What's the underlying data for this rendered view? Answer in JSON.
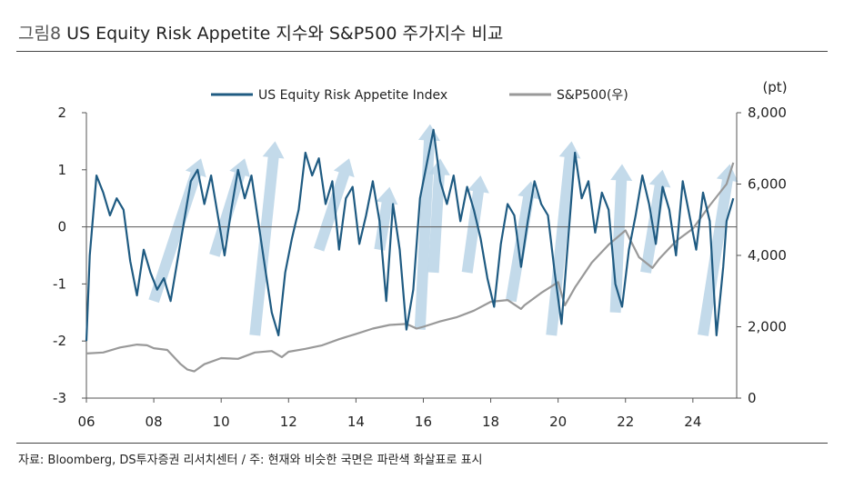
{
  "header": {
    "figure_label": "그림8",
    "title": "US Equity Risk Appetite 지수와 S&P500 주가지수 비교"
  },
  "footer": {
    "source": "자료: Bloomberg, DS투자증권 리서치센터 / 주: 현재와 비슷한 국면은 파란색 화살표로 표시"
  },
  "colors": {
    "risk_index": "#1f5b82",
    "sp500": "#999999",
    "arrow": "#b8d3e6",
    "axis": "#555555"
  },
  "chart_data": {
    "type": "line",
    "title": "US Equity Risk Appetite 지수와 S&P500 주가지수 비교",
    "x_tick_labels": [
      "06",
      "08",
      "10",
      "12",
      "14",
      "16",
      "18",
      "20",
      "22",
      "24"
    ],
    "x_range": [
      2006.0,
      2025.3
    ],
    "y_left": {
      "range": [
        -3,
        2
      ],
      "ticks": [
        2,
        1,
        0,
        -1,
        -2,
        -3
      ],
      "tick_labels": [
        "2",
        "1",
        "0",
        "-1",
        "-2",
        "-3"
      ]
    },
    "y_right": {
      "range": [
        0,
        8000
      ],
      "unit_label": "(pt)",
      "ticks": [
        8000,
        6000,
        4000,
        2000,
        0
      ],
      "tick_labels": [
        "8,000",
        "6,000",
        "4,000",
        "2,000",
        "0"
      ]
    },
    "zero_line": true,
    "legend": [
      "US Equity Risk Appetite Index",
      "S&P500(우)"
    ],
    "legend_position": "top-center",
    "series": [
      {
        "name": "US Equity Risk Appetite Index",
        "axis": "left",
        "x": [
          2006.0,
          2006.1,
          2006.3,
          2006.5,
          2006.7,
          2006.9,
          2007.1,
          2007.3,
          2007.5,
          2007.7,
          2007.9,
          2008.1,
          2008.3,
          2008.5,
          2008.7,
          2008.9,
          2009.1,
          2009.3,
          2009.5,
          2009.7,
          2009.9,
          2010.1,
          2010.3,
          2010.5,
          2010.7,
          2010.9,
          2011.1,
          2011.3,
          2011.5,
          2011.7,
          2011.9,
          2012.1,
          2012.3,
          2012.5,
          2012.7,
          2012.9,
          2013.1,
          2013.3,
          2013.5,
          2013.7,
          2013.9,
          2014.1,
          2014.3,
          2014.5,
          2014.7,
          2014.9,
          2015.1,
          2015.3,
          2015.5,
          2015.7,
          2015.9,
          2016.1,
          2016.3,
          2016.5,
          2016.7,
          2016.9,
          2017.1,
          2017.3,
          2017.5,
          2017.7,
          2017.9,
          2018.1,
          2018.3,
          2018.5,
          2018.7,
          2018.9,
          2019.1,
          2019.3,
          2019.5,
          2019.7,
          2019.9,
          2020.1,
          2020.3,
          2020.5,
          2020.7,
          2020.9,
          2021.1,
          2021.3,
          2021.5,
          2021.7,
          2021.9,
          2022.1,
          2022.3,
          2022.5,
          2022.7,
          2022.9,
          2023.1,
          2023.3,
          2023.5,
          2023.7,
          2023.9,
          2024.1,
          2024.3,
          2024.5,
          2024.7,
          2024.9,
          2025.0,
          2025.2
        ],
        "values": [
          -2.0,
          -0.5,
          0.9,
          0.6,
          0.2,
          0.5,
          0.3,
          -0.6,
          -1.2,
          -0.4,
          -0.8,
          -1.1,
          -0.9,
          -1.3,
          -0.6,
          0.1,
          0.8,
          1.0,
          0.4,
          0.9,
          0.2,
          -0.5,
          0.3,
          1.0,
          0.5,
          0.9,
          0.1,
          -0.7,
          -1.5,
          -1.9,
          -0.8,
          -0.2,
          0.3,
          1.3,
          0.9,
          1.2,
          0.4,
          0.8,
          -0.4,
          0.5,
          0.7,
          -0.3,
          0.2,
          0.8,
          0.1,
          -1.3,
          0.4,
          -0.4,
          -1.8,
          -1.1,
          0.5,
          1.1,
          1.7,
          0.8,
          0.4,
          0.9,
          0.1,
          0.7,
          0.3,
          -0.2,
          -0.9,
          -1.4,
          -0.3,
          0.4,
          0.2,
          -0.7,
          0.1,
          0.8,
          0.4,
          0.2,
          -0.8,
          -1.7,
          -0.2,
          1.3,
          0.5,
          0.8,
          -0.1,
          0.6,
          0.3,
          -1.0,
          -1.4,
          -0.4,
          0.2,
          0.9,
          0.4,
          -0.3,
          0.7,
          0.3,
          -0.5,
          0.8,
          0.2,
          -0.4,
          0.6,
          0.1,
          -1.9,
          -0.7,
          0.1,
          0.5
        ]
      },
      {
        "name": "S&P500(우)",
        "axis": "right",
        "x": [
          2006.0,
          2006.5,
          2007.0,
          2007.5,
          2007.8,
          2008.0,
          2008.4,
          2008.8,
          2009.0,
          2009.2,
          2009.5,
          2010.0,
          2010.5,
          2011.0,
          2011.5,
          2011.8,
          2012.0,
          2012.5,
          2013.0,
          2013.5,
          2014.0,
          2014.5,
          2015.0,
          2015.5,
          2015.8,
          2016.0,
          2016.5,
          2017.0,
          2017.5,
          2018.0,
          2018.5,
          2018.9,
          2019.0,
          2019.5,
          2020.0,
          2020.2,
          2020.5,
          2021.0,
          2021.5,
          2022.0,
          2022.4,
          2022.8,
          2023.0,
          2023.5,
          2024.0,
          2024.5,
          2025.0,
          2025.2
        ],
        "values": [
          1250,
          1280,
          1420,
          1500,
          1480,
          1400,
          1350,
          950,
          800,
          750,
          950,
          1120,
          1100,
          1280,
          1320,
          1150,
          1300,
          1380,
          1480,
          1650,
          1800,
          1950,
          2050,
          2080,
          1950,
          2000,
          2150,
          2270,
          2450,
          2700,
          2750,
          2500,
          2600,
          2950,
          3250,
          2600,
          3100,
          3800,
          4300,
          4700,
          3950,
          3650,
          3900,
          4400,
          4750,
          5400,
          6000,
          6600
        ]
      }
    ],
    "highlight_arrows": [
      {
        "from": [
          2008.0,
          -1.3
        ],
        "to": [
          2009.4,
          1.2
        ]
      },
      {
        "from": [
          2009.8,
          -0.5
        ],
        "to": [
          2010.7,
          1.2
        ]
      },
      {
        "from": [
          2011.0,
          -1.9
        ],
        "to": [
          2011.6,
          1.5
        ]
      },
      {
        "from": [
          2012.9,
          -0.4
        ],
        "to": [
          2013.8,
          1.2
        ]
      },
      {
        "from": [
          2014.7,
          -0.4
        ],
        "to": [
          2015.0,
          0.7
        ]
      },
      {
        "from": [
          2015.9,
          -1.8
        ],
        "to": [
          2016.2,
          1.8
        ]
      },
      {
        "from": [
          2016.3,
          -0.8
        ],
        "to": [
          2016.5,
          1.2
        ]
      },
      {
        "from": [
          2017.3,
          -0.8
        ],
        "to": [
          2017.7,
          0.9
        ]
      },
      {
        "from": [
          2018.6,
          -1.3
        ],
        "to": [
          2019.2,
          0.8
        ]
      },
      {
        "from": [
          2019.8,
          -1.9
        ],
        "to": [
          2020.4,
          1.5
        ]
      },
      {
        "from": [
          2021.7,
          -1.5
        ],
        "to": [
          2021.9,
          1.1
        ]
      },
      {
        "from": [
          2022.6,
          -0.8
        ],
        "to": [
          2023.1,
          1.0
        ]
      },
      {
        "from": [
          2024.3,
          -1.9
        ],
        "to": [
          2025.1,
          1.1
        ]
      }
    ]
  }
}
